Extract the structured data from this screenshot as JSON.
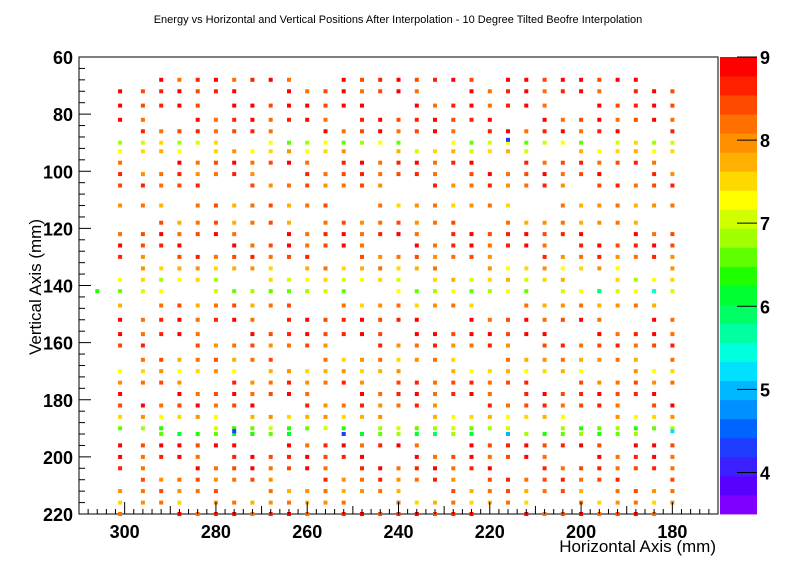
{
  "chart_data": {
    "type": "heatmap",
    "title": "Energy vs Horizontal and Vertical Positions After Interpolation - 10 Degree Tilted Beofre Interpolation",
    "xlabel": "Horizontal Axis (mm)",
    "ylabel": "Vertical Axis (mm)",
    "xlim": [
      310,
      170
    ],
    "ylim": [
      220,
      60
    ],
    "x_reversed": true,
    "y_reversed": true,
    "x_ticks": [
      300,
      280,
      260,
      240,
      220,
      200,
      180
    ],
    "y_ticks": [
      60,
      80,
      100,
      120,
      140,
      160,
      180,
      200,
      220
    ],
    "z_label": "",
    "zlim": [
      3.5,
      9
    ],
    "z_ticks": [
      4,
      5,
      6,
      7,
      8,
      9
    ],
    "grid": false,
    "colorbar": "right",
    "x_columns": [
      301,
      296,
      292,
      288,
      284,
      280,
      276,
      272,
      268,
      264,
      260,
      256,
      252,
      248,
      244,
      240,
      236,
      232,
      228,
      224,
      220,
      216,
      212,
      208,
      204,
      200,
      196,
      192,
      188,
      184,
      180
    ],
    "y_rows": [
      68,
      72,
      77,
      82,
      86,
      90,
      93,
      97,
      101,
      105,
      112,
      118,
      122,
      126,
      130,
      134,
      138,
      142,
      147,
      152,
      157,
      161,
      166,
      170,
      174,
      178,
      182,
      186,
      190,
      192,
      196,
      200,
      204,
      208,
      212,
      216,
      220
    ],
    "row_energy": [
      8.7,
      8.6,
      8.7,
      8.6,
      8.5,
      7.0,
      7.5,
      8.5,
      8.4,
      8.3,
      8.0,
      8.1,
      8.6,
      8.6,
      8.3,
      7.7,
      7.3,
      6.9,
      8.0,
      8.6,
      8.7,
      8.3,
      8.0,
      7.6,
      8.3,
      8.6,
      8.4,
      7.6,
      6.7,
      6.5,
      8.7,
      8.6,
      8.5,
      8.3,
      8.1,
      7.9,
      8.6
    ],
    "notable_points": [
      {
        "x": 216,
        "y": 89,
        "z": 4.2
      },
      {
        "x": 276,
        "y": 191,
        "z": 4.3
      },
      {
        "x": 252,
        "y": 192,
        "z": 4.4
      },
      {
        "x": 216,
        "y": 192,
        "z": 5.0
      },
      {
        "x": 180,
        "y": 191,
        "z": 5.2
      },
      {
        "x": 184,
        "y": 142,
        "z": 5.5
      },
      {
        "x": 306,
        "y": 142,
        "z": 6.4
      },
      {
        "x": 196,
        "y": 142,
        "z": 6.0
      },
      {
        "x": 268,
        "y": 142,
        "z": 6.6
      },
      {
        "x": 232,
        "y": 192,
        "z": 6.0
      }
    ]
  },
  "colors": {
    "palette": [
      "#8000ff",
      "#5a00ff",
      "#3a20ff",
      "#1f3cff",
      "#0064ff",
      "#0090ff",
      "#00b8ff",
      "#00e0ff",
      "#00ffdc",
      "#00ffa0",
      "#00ff64",
      "#00ff30",
      "#20ff00",
      "#60ff00",
      "#a0ff00",
      "#d0ff00",
      "#ffff00",
      "#ffd800",
      "#ffb000",
      "#ff9000",
      "#ff7000",
      "#ff4800",
      "#ff2000",
      "#ff0000"
    ],
    "axis": "#000000",
    "background": "#ffffff"
  }
}
